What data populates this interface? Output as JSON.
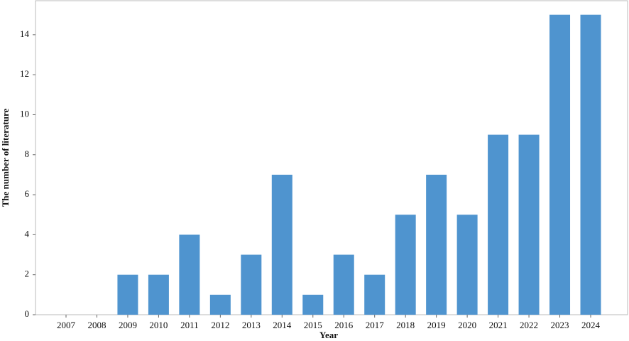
{
  "chart_data": {
    "type": "bar",
    "x_label": "Year",
    "y_label": "The number of literature",
    "categories": [
      "2007",
      "2008",
      "2009",
      "2010",
      "2011",
      "2012",
      "2013",
      "2014",
      "2015",
      "2016",
      "2017",
      "2018",
      "2019",
      "2020",
      "2021",
      "2022",
      "2023",
      "2024"
    ],
    "values": [
      0,
      0,
      2,
      2,
      4,
      1,
      3,
      7,
      1,
      3,
      2,
      5,
      7,
      5,
      9,
      9,
      15,
      15
    ],
    "color": "#4f94cf",
    "ylim": [
      0,
      15.7
    ],
    "yticks": [
      0,
      2,
      4,
      6,
      8,
      10,
      12,
      14
    ],
    "grid": false
  }
}
